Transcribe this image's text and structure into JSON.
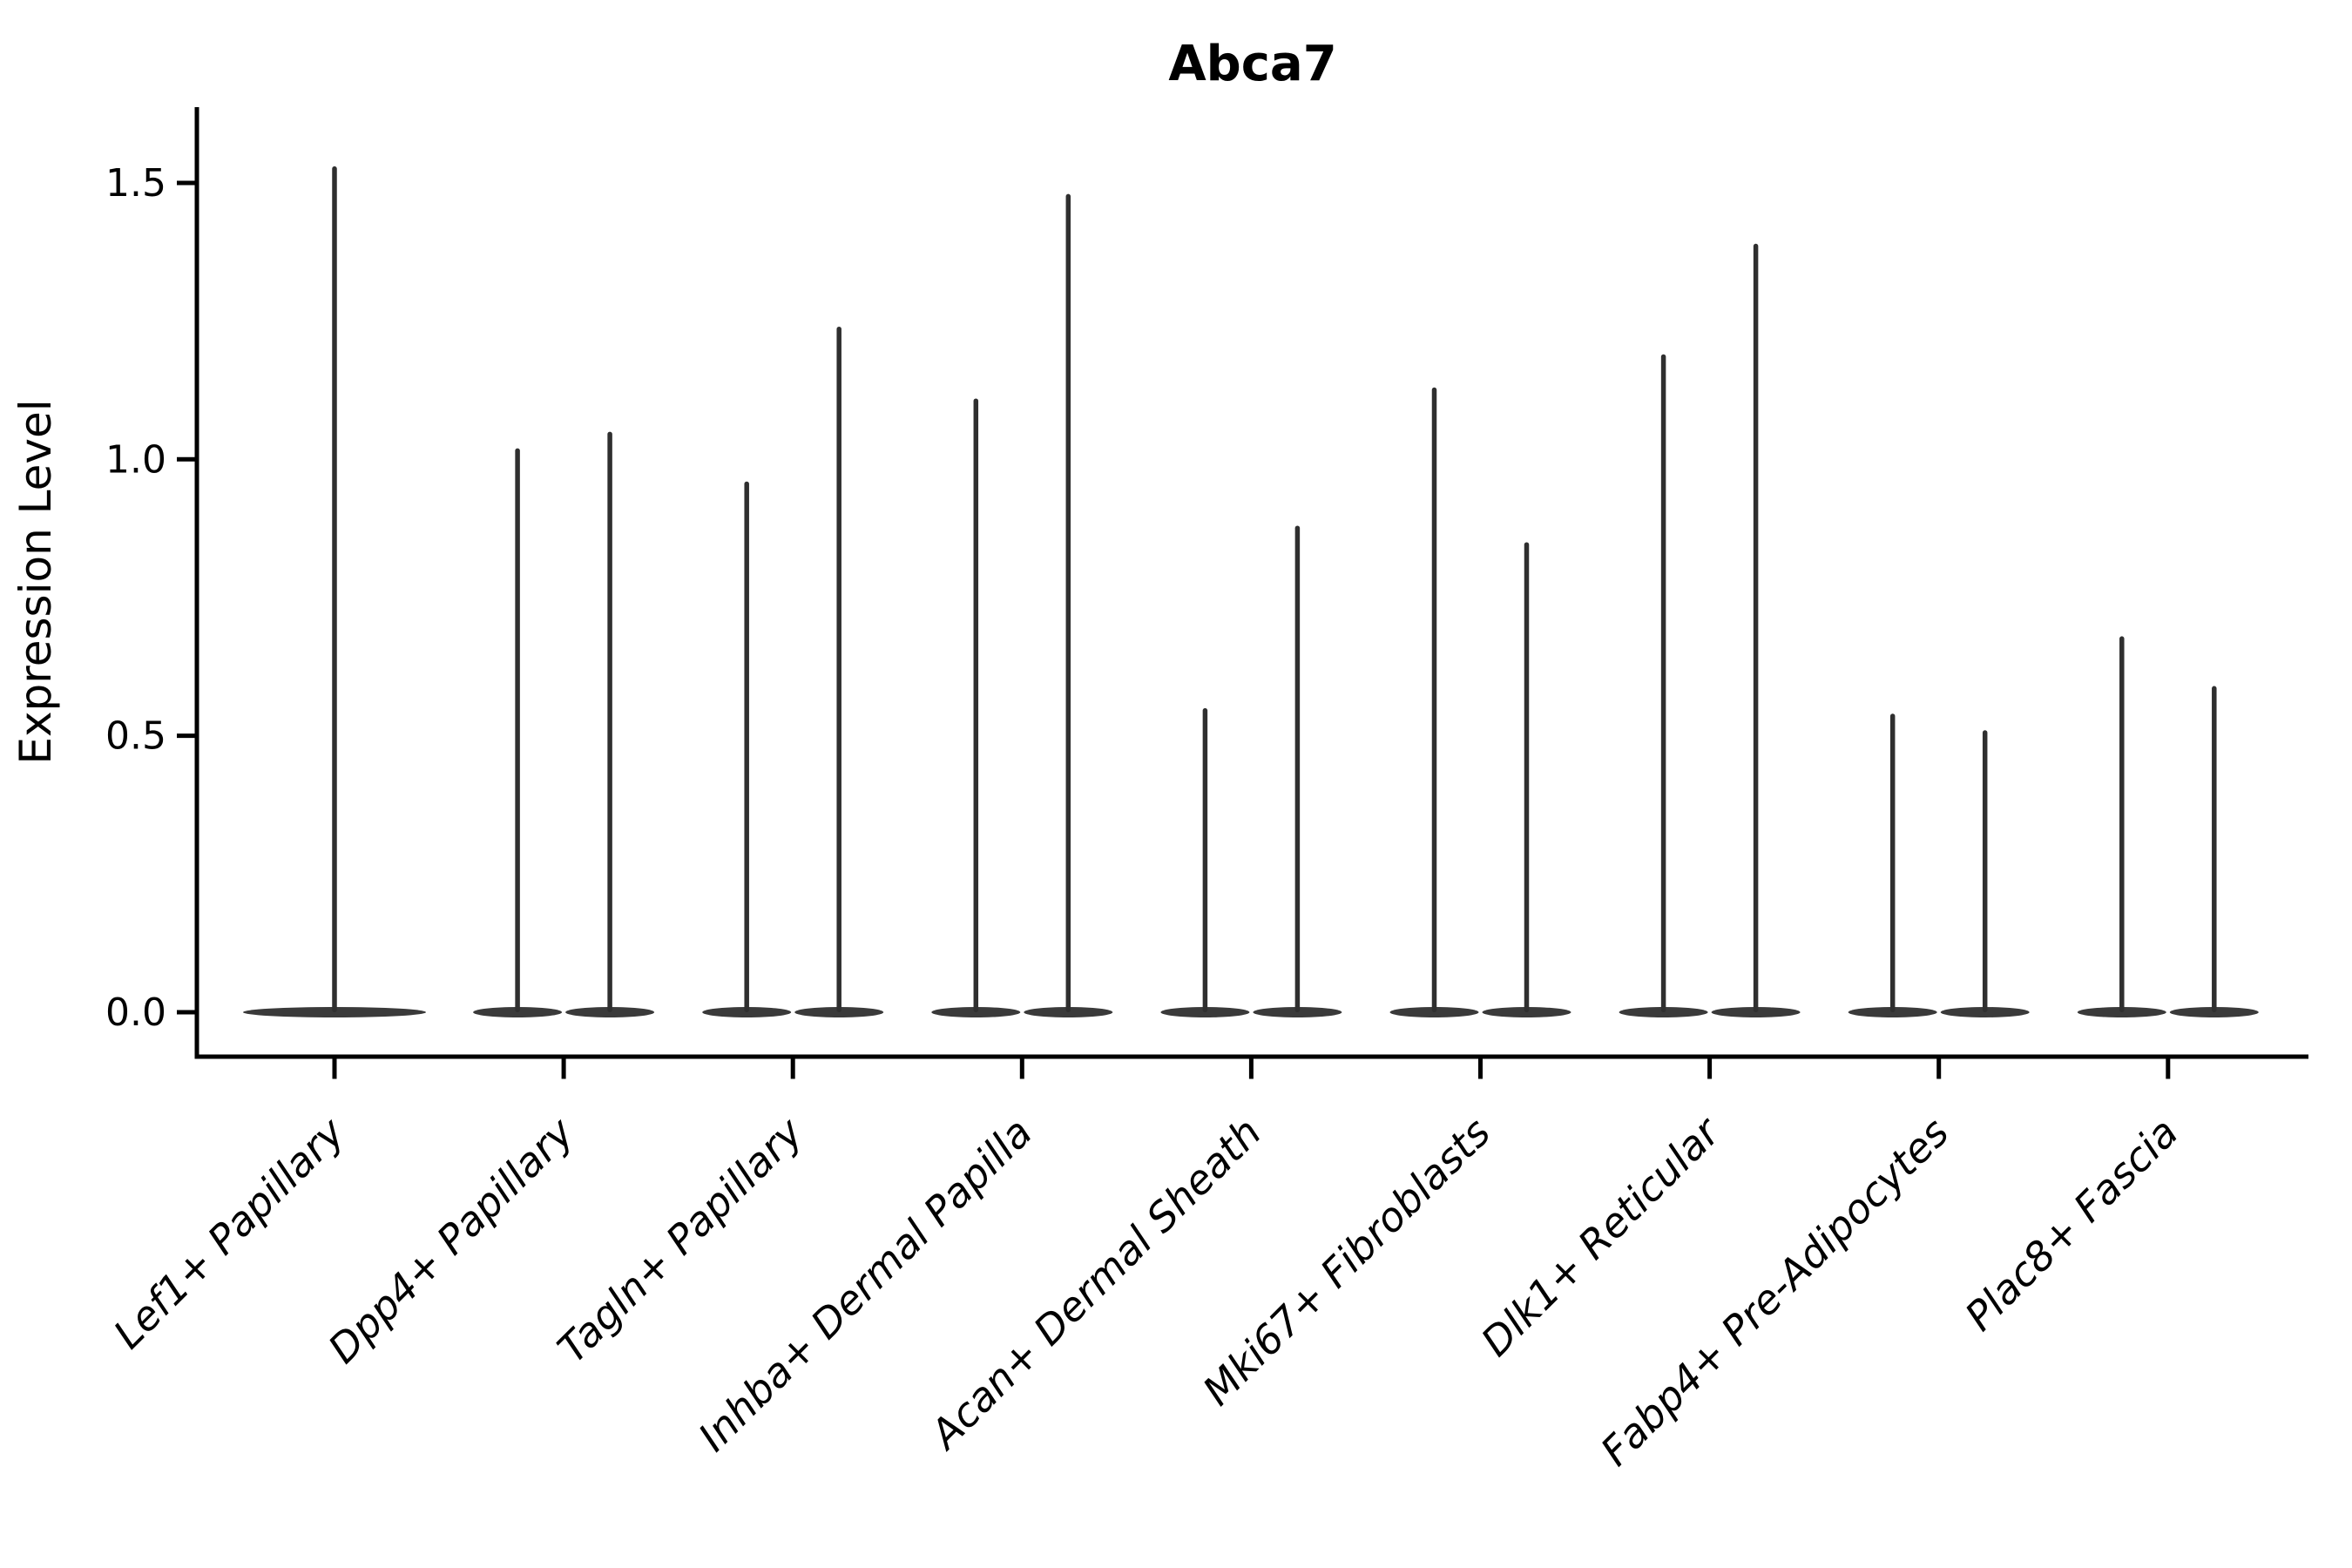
{
  "chart_data": {
    "type": "violin",
    "title": "Abca7",
    "ylabel": "Expression Level",
    "xlabel": "",
    "ylim": [
      -0.08,
      1.64
    ],
    "grid": false,
    "legend": "none",
    "yticks": [
      {
        "value": 0.0,
        "label": "0.0"
      },
      {
        "value": 0.5,
        "label": "0.5"
      },
      {
        "value": 1.0,
        "label": "1.0"
      },
      {
        "value": 1.5,
        "label": "1.5"
      }
    ],
    "categories": [
      "Lef1+ Papillary",
      "Dpp4+ Papillary",
      "Tagln+ Papillary",
      "Inhba+ Dermal Papilla",
      "Acan+ Dermal Sheath",
      "Mki67+ Fibroblasts",
      "Dlk1+ Reticular",
      "Fabp4+ Pre-Adipocytes",
      "Plac8+ Fascia"
    ],
    "violins": [
      {
        "category": "Lef1+ Papillary",
        "max_values": [
          1.53
        ]
      },
      {
        "category": "Dpp4+ Papillary",
        "max_values": [
          1.02,
          1.05
        ]
      },
      {
        "category": "Tagln+ Papillary",
        "max_values": [
          0.96,
          1.24
        ]
      },
      {
        "category": "Inhba+ Dermal Papilla",
        "max_values": [
          1.11,
          1.48
        ]
      },
      {
        "category": "Acan+ Dermal Sheath",
        "max_values": [
          0.55,
          0.88
        ]
      },
      {
        "category": "Mki67+ Fibroblasts",
        "max_values": [
          1.13,
          0.85
        ]
      },
      {
        "category": "Dlk1+ Reticular",
        "max_values": [
          1.19,
          1.39
        ]
      },
      {
        "category": "Fabp4+ Pre-Adipocytes",
        "max_values": [
          0.54,
          0.51
        ]
      },
      {
        "category": "Plac8+ Fascia",
        "max_values": [
          0.68,
          0.59
        ]
      }
    ],
    "density_note": "All distributions are concentrated at 0 (flat wide base) with a thin spike up to max value",
    "colors": {
      "violin_spike": "#2f2f2f",
      "violin_base": "#3a3a3a",
      "axis": "#000000",
      "text": "#000000",
      "background": "#ffffff"
    }
  }
}
